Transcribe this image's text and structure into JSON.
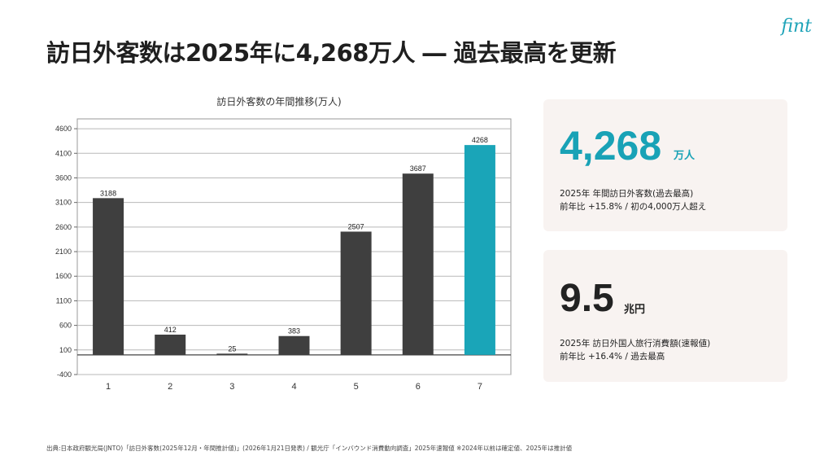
{
  "title": "訪日外客数は2025年に4,268万人 ― 過去最高を更新",
  "logo": "fint",
  "chart_data": {
    "type": "bar",
    "title": "訪日外客数の年間推移(万人)",
    "categories": [
      "1",
      "2",
      "3",
      "4",
      "5",
      "6",
      "7"
    ],
    "values": [
      3188,
      412,
      25,
      383,
      2507,
      3687,
      4268
    ],
    "highlight_index": 6,
    "ylim": [
      -400,
      4800
    ],
    "yticks": [
      -400,
      100,
      600,
      1100,
      1600,
      2100,
      2600,
      3100,
      3600,
      4100,
      4600
    ],
    "grid": true,
    "colors": {
      "bar": "#3f3f3f",
      "highlight": "#1aa5b8",
      "grid": "#b8b8b8"
    }
  },
  "card1": {
    "value": "4,268",
    "unit": "万人",
    "line1": "2025年 年間訪日外客数(過去最高)",
    "line2": "前年比 +15.8% / 初の4,000万人超え"
  },
  "card2": {
    "value": "9.5",
    "unit": "兆円",
    "line1": "2025年 訪日外国人旅行消費額(速報値)",
    "line2": "前年比 +16.4% / 過去最高"
  },
  "source": "出典:日本政府観光局(JNTO)「訪日外客数(2025年12月・年間推計値)」(2026年1月21日発表) / 観光庁「インバウンド消費動向調査」2025年速報値 ※2024年以前は確定値、2025年は推計値"
}
